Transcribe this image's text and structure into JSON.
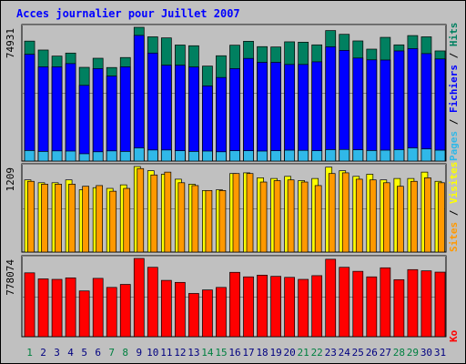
{
  "chart_data": {
    "type": "bar",
    "title": "Acces journalier pour Juillet 2007",
    "categories": [
      "1",
      "2",
      "3",
      "4",
      "5",
      "6",
      "7",
      "8",
      "9",
      "10",
      "11",
      "12",
      "13",
      "14",
      "15",
      "16",
      "17",
      "18",
      "19",
      "20",
      "21",
      "22",
      "23",
      "24",
      "25",
      "26",
      "27",
      "28",
      "29",
      "30",
      "31"
    ],
    "weekend_days": [
      "1",
      "7",
      "8",
      "14",
      "15",
      "21",
      "22",
      "28",
      "29"
    ],
    "panels": [
      {
        "ytick": "74931",
        "ymax": 74931,
        "series": [
          {
            "name": "Pages",
            "color": "#30b8e8",
            "values": [
              5900,
              5400,
              5700,
              5600,
              4100,
              5200,
              5700,
              5400,
              7400,
              6200,
              6200,
              5800,
              5400,
              5600,
              5200,
              5800,
              5800,
              5600,
              5800,
              6100,
              6000,
              5800,
              6400,
              6500,
              6300,
              5900,
              6100,
              6400,
              7400,
              6800,
              6100
            ]
          },
          {
            "name": "Fichiers",
            "color": "#0000ff",
            "values": [
              59800,
              52800,
              52800,
              54600,
              42400,
              51800,
              47600,
              52800,
              70400,
              60500,
              53700,
              53700,
              52700,
              42100,
              46800,
              51800,
              57500,
              55300,
              55300,
              54100,
              54100,
              55600,
              64000,
              62000,
              57700,
              56700,
              56600,
              61700,
              63000,
              60200,
              57200
            ]
          },
          {
            "name": "Hits",
            "color": "#008060",
            "values": [
              67200,
              62200,
              58800,
              60500,
              52500,
              57600,
              52400,
              58000,
              74931,
              69600,
              69000,
              65000,
              64600,
              53200,
              59000,
              64900,
              67100,
              64100,
              63900,
              66800,
              66600,
              65100,
              73100,
              71000,
              67300,
              62700,
              69300,
              65100,
              70300,
              69600,
              61700
            ]
          }
        ]
      },
      {
        "ytick": "1209",
        "ymax": 1209,
        "series": [
          {
            "name": "Visites",
            "color": "#ffff00",
            "values": [
              1020,
              980,
              980,
              1020,
              880,
              910,
              900,
              950,
              1209,
              1150,
              1100,
              1030,
              960,
              870,
              880,
              1110,
              1120,
              1050,
              1040,
              1070,
              1010,
              1040,
              1200,
              1150,
              1070,
              1100,
              1020,
              1040,
              1040,
              1130,
              1000
            ]
          },
          {
            "name": "Sites",
            "color": "#ff9900",
            "values": [
              1000,
              960,
              960,
              960,
              930,
              940,
              860,
              900,
              1180,
              1090,
              1130,
              980,
              940,
              870,
              870,
              1110,
              1110,
              990,
              1010,
              1020,
              990,
              940,
              1110,
              1120,
              1030,
              1020,
              980,
              930,
              1000,
              1050,
              980
            ]
          }
        ]
      },
      {
        "ytick": "778074",
        "ymax": 778074,
        "series": [
          {
            "name": "Ko",
            "color": "#ff0000",
            "values": [
              635000,
              575000,
              570000,
              585000,
              455000,
              580000,
              490000,
              520000,
              778074,
              690000,
              560000,
              540000,
              430000,
              465000,
              490000,
              640000,
              595000,
              612000,
              600000,
              590000,
              570000,
              607000,
              770000,
              690000,
              650000,
              595000,
              685000,
              567000,
              667000,
              655000,
              642000
            ]
          }
        ]
      }
    ],
    "right_label_groups": [
      [
        {
          "text": "Pages",
          "color": "#30b8e8"
        },
        {
          "text": " / ",
          "color": "#000000"
        },
        {
          "text": "Fichiers",
          "color": "#0000ff"
        },
        {
          "text": " / ",
          "color": "#000000"
        },
        {
          "text": "Hits",
          "color": "#008060"
        }
      ],
      [
        {
          "text": "Sites",
          "color": "#ff9900"
        },
        {
          "text": " / ",
          "color": "#000000"
        },
        {
          "text": "Visites",
          "color": "#ffff00"
        }
      ],
      [
        {
          "text": "Ko",
          "color": "#ff0000"
        }
      ]
    ],
    "colors": {
      "title": "#0000ff",
      "weekday_label": "#000080",
      "weekend_label": "#008040",
      "gridline": "#808080"
    }
  }
}
